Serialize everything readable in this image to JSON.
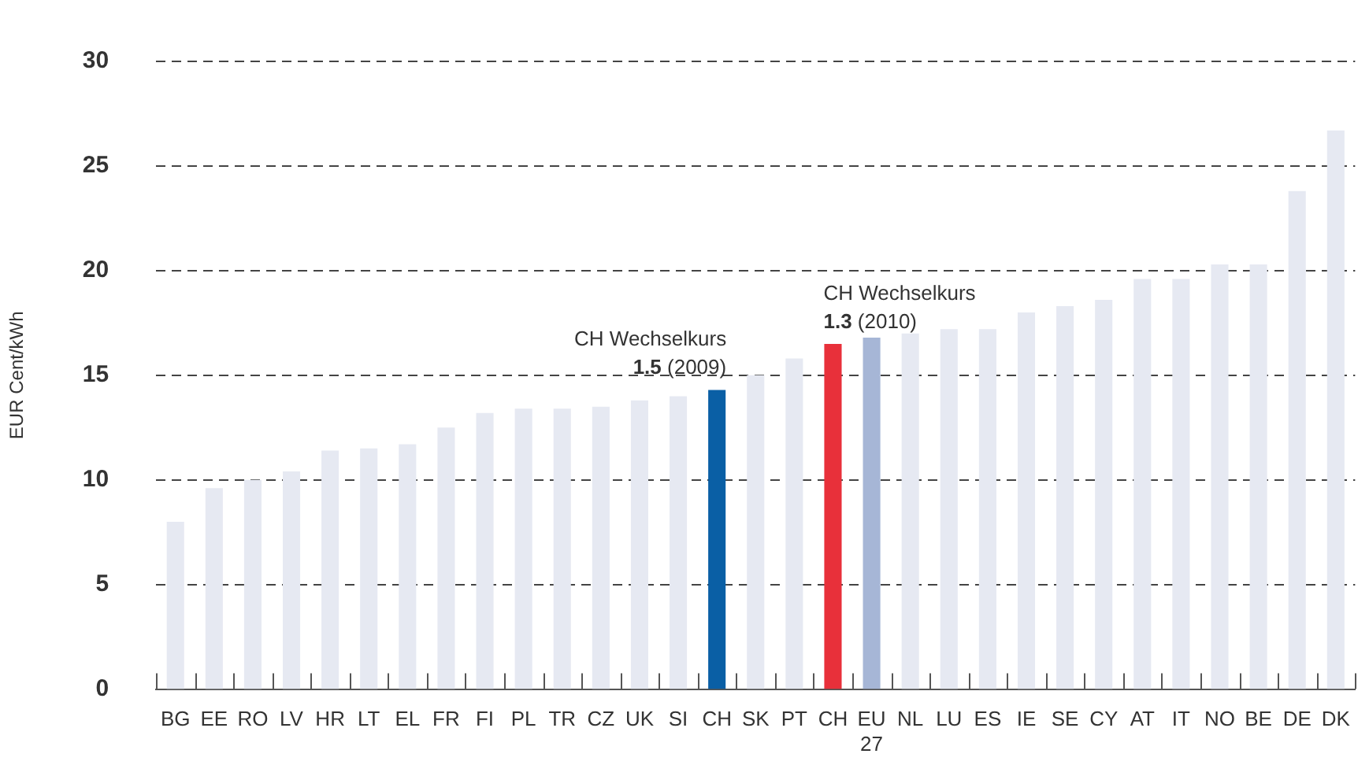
{
  "chart_data": {
    "type": "bar",
    "ylabel": "EUR Cent/kWh",
    "categories": [
      "BG",
      "EE",
      "RO",
      "LV",
      "HR",
      "LT",
      "EL",
      "FR",
      "FI",
      "PL",
      "TR",
      "CZ",
      "UK",
      "SI",
      "CH",
      "SK",
      "PT",
      "CH",
      "EU 27",
      "NL",
      "LU",
      "ES",
      "IE",
      "SE",
      "CY",
      "AT",
      "IT",
      "NO",
      "BE",
      "DE",
      "DK"
    ],
    "values": [
      8.0,
      9.6,
      10.0,
      10.4,
      11.4,
      11.5,
      11.7,
      12.5,
      13.2,
      13.4,
      13.4,
      13.5,
      13.8,
      14.0,
      14.3,
      15.0,
      15.8,
      16.5,
      16.8,
      17.0,
      17.2,
      17.2,
      18.0,
      18.3,
      18.6,
      19.6,
      19.6,
      20.3,
      20.3,
      23.8,
      26.7
    ],
    "colors": [
      "#e6e9f2",
      "#e6e9f2",
      "#e6e9f2",
      "#e6e9f2",
      "#e6e9f2",
      "#e6e9f2",
      "#e6e9f2",
      "#e6e9f2",
      "#e6e9f2",
      "#e6e9f2",
      "#e6e9f2",
      "#e6e9f2",
      "#e6e9f2",
      "#e6e9f2",
      "#0a5fa5",
      "#e6e9f2",
      "#e6e9f2",
      "#e8303a",
      "#a6b6d6",
      "#e6e9f2",
      "#e6e9f2",
      "#e6e9f2",
      "#e6e9f2",
      "#e6e9f2",
      "#e6e9f2",
      "#e6e9f2",
      "#e6e9f2",
      "#e6e9f2",
      "#e6e9f2",
      "#e6e9f2",
      "#e6e9f2"
    ],
    "ylim": [
      0,
      30
    ],
    "yticks": [
      0,
      5,
      10,
      15,
      20,
      25,
      30
    ],
    "grid": "y",
    "legend": false,
    "annotations": [
      "CH Wechselkurs\n1.5 (2009)",
      "CH Wechselkurs\n1.3 (2010)"
    ]
  }
}
